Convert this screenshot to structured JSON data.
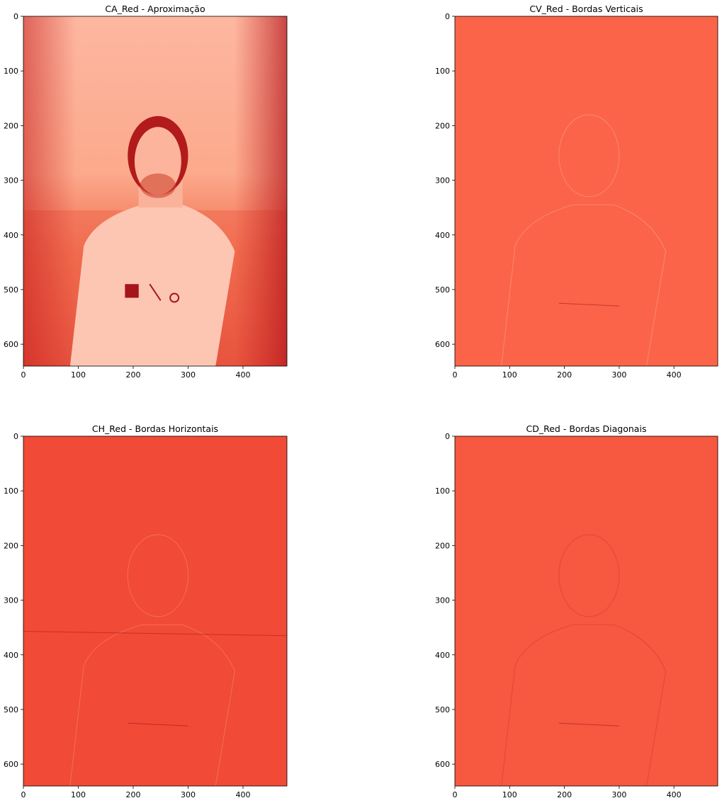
{
  "figure": {
    "background": "#ffffff",
    "colormap": "Reds"
  },
  "chart_data": [
    {
      "type": "heatmap",
      "title": "CA_Red - Aproximação",
      "image_extent": {
        "x": [
          0,
          480
        ],
        "y": [
          0,
          640
        ]
      },
      "x_ticks": [
        0,
        100,
        200,
        300,
        400
      ],
      "y_ticks": [
        0,
        100,
        200,
        300,
        400,
        500,
        600
      ],
      "tone_color": "#fb9a7b",
      "content": "approximation coefficients (red channel) of a portrait photo"
    },
    {
      "type": "heatmap",
      "title": "CV_Red - Bordas Verticais",
      "image_extent": {
        "x": [
          0,
          480
        ],
        "y": [
          0,
          640
        ]
      },
      "x_ticks": [
        0,
        100,
        200,
        300,
        400
      ],
      "y_ticks": [
        0,
        100,
        200,
        300,
        400,
        500,
        600
      ],
      "tone_color": "#fb6448",
      "content": "vertical detail coefficients"
    },
    {
      "type": "heatmap",
      "title": "CH_Red - Bordas Horizontais",
      "image_extent": {
        "x": [
          0,
          480
        ],
        "y": [
          0,
          640
        ]
      },
      "x_ticks": [
        0,
        100,
        200,
        300,
        400
      ],
      "y_ticks": [
        0,
        100,
        200,
        300,
        400,
        500,
        600
      ],
      "tone_color": "#f14a37",
      "content": "horizontal detail coefficients"
    },
    {
      "type": "heatmap",
      "title": "CD_Red - Bordas Diagonais",
      "image_extent": {
        "x": [
          0,
          480
        ],
        "y": [
          0,
          640
        ]
      },
      "x_ticks": [
        0,
        100,
        200,
        300,
        400
      ],
      "y_ticks": [
        0,
        100,
        200,
        300,
        400,
        500,
        600
      ],
      "tone_color": "#f65840",
      "content": "diagonal detail coefficients"
    }
  ]
}
